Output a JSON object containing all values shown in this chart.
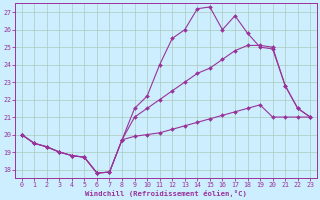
{
  "xlabel": "Windchill (Refroidissement éolien,°C)",
  "bg_color": "#cceeff",
  "line_color": "#993399",
  "grid_color": "#aaccbb",
  "xlim": [
    -0.5,
    23.5
  ],
  "ylim": [
    17.5,
    27.5
  ],
  "xticks": [
    0,
    1,
    2,
    3,
    4,
    5,
    6,
    7,
    8,
    9,
    10,
    11,
    12,
    13,
    14,
    15,
    16,
    17,
    18,
    19,
    20,
    21,
    22,
    23
  ],
  "yticks": [
    18,
    19,
    20,
    21,
    22,
    23,
    24,
    25,
    26,
    27
  ],
  "hours": [
    0,
    1,
    2,
    3,
    4,
    5,
    6,
    7,
    8,
    9,
    10,
    11,
    12,
    13,
    14,
    15,
    16,
    17,
    18,
    19,
    20,
    21,
    22,
    23
  ],
  "line1": [
    20.0,
    19.5,
    19.3,
    19.0,
    18.8,
    18.7,
    17.8,
    17.85,
    19.7,
    21.5,
    22.2,
    24.0,
    25.5,
    26.0,
    27.2,
    27.3,
    26.0,
    26.8,
    25.8,
    25.0,
    24.9,
    22.8,
    21.5,
    21.0
  ],
  "line2": [
    20.0,
    19.5,
    19.3,
    19.0,
    18.8,
    18.7,
    17.8,
    17.85,
    19.7,
    21.0,
    21.5,
    22.0,
    22.5,
    23.0,
    23.5,
    23.8,
    24.3,
    24.8,
    25.1,
    25.1,
    25.0,
    22.8,
    21.5,
    21.0
  ],
  "line3": [
    20.0,
    19.5,
    19.3,
    19.0,
    18.8,
    18.7,
    17.8,
    17.85,
    19.7,
    19.9,
    20.0,
    20.1,
    20.3,
    20.5,
    20.7,
    20.9,
    21.1,
    21.3,
    21.5,
    21.7,
    21.0,
    21.0,
    21.0,
    21.0
  ]
}
